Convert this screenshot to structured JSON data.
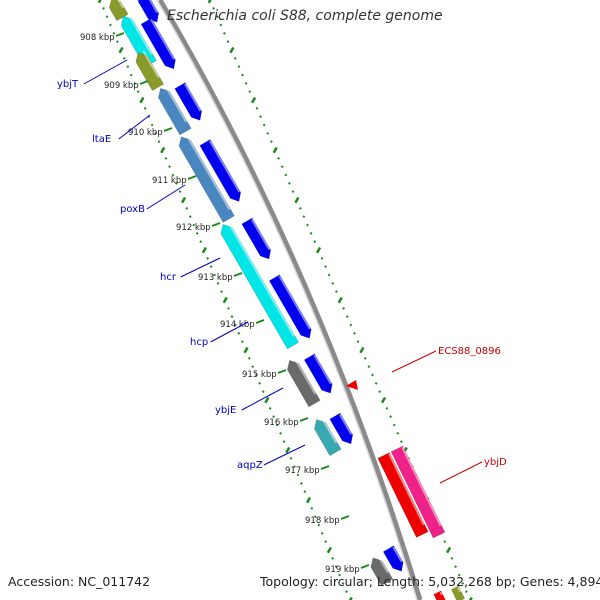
{
  "title": "Escherichia coli S88, complete genome",
  "accession": "Accession: NC_011742",
  "summary": "Topology: circular; Length: 5,032,268 bp; Genes: 4,894",
  "tick_labels": [
    "908 kbp",
    "909 kbp",
    "910 kbp",
    "911 kbp",
    "912 kbp",
    "913 kbp",
    "914 kbp",
    "915 kbp",
    "916 kbp",
    "917 kbp",
    "918 kbp",
    "919 kbp"
  ],
  "left_gene_labels": [
    "ybjT",
    "ltaE",
    "poxB",
    "hcr",
    "hcp",
    "ybjE",
    "aqpZ"
  ],
  "right_gene_labels": [
    "ECS88_0896",
    "ybjD"
  ],
  "colors": {
    "forward_cds": "#0000ee",
    "reverse_cds_cyan": "#00e5e5",
    "reverse_cds_teal": "#3aa8b0",
    "reverse_cds_steel": "#4a86c0",
    "reverse_cds_olive": "#8a9a2a",
    "reverse_cds_grey": "#6a6a6a",
    "red_feature": "#ee0000",
    "pink_feature": "#ee2288",
    "backbone": "#888888",
    "tick_green": "#1a8a1a",
    "left_label": "#0000bb",
    "right_label": "#cc0000"
  }
}
